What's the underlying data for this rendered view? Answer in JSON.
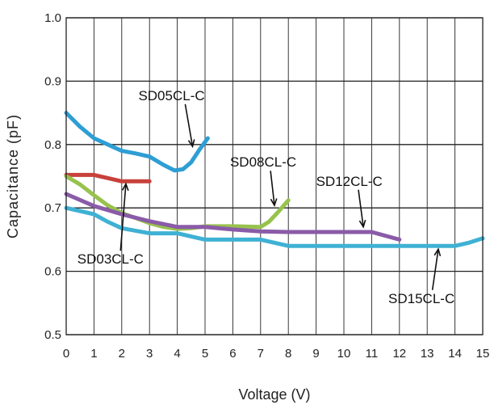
{
  "chart_data": {
    "type": "line",
    "xlabel": "Voltage (V)",
    "ylabel": "Capacitance (pF)",
    "xlim": [
      0,
      15
    ],
    "ylim": [
      0.5,
      1.0
    ],
    "x_ticks": [
      "0",
      "1",
      "2",
      "3",
      "4",
      "5",
      "6",
      "7",
      "8",
      "9",
      "10",
      "11",
      "12",
      "13",
      "14",
      "15"
    ],
    "y_ticks": [
      "0.5",
      "0.6",
      "0.7",
      "0.8",
      "0.9",
      "1.0"
    ],
    "grid": true,
    "series": [
      {
        "name": "SD03CL-C",
        "color": "#c8413b",
        "label_at": [
          0.4,
          0.612
        ],
        "arrow_to": [
          2.15,
          0.738
        ],
        "points": [
          [
            0,
            0.752
          ],
          [
            1,
            0.752
          ],
          [
            2,
            0.742
          ],
          [
            3,
            0.742
          ]
        ]
      },
      {
        "name": "SD05CL-C",
        "color": "#2e9ed4",
        "label_at": [
          2.6,
          0.87
        ],
        "arrow_to": [
          4.55,
          0.797
        ],
        "points": [
          [
            0,
            0.85
          ],
          [
            0.5,
            0.828
          ],
          [
            1,
            0.81
          ],
          [
            1.5,
            0.8
          ],
          [
            2,
            0.79
          ],
          [
            2.5,
            0.786
          ],
          [
            3,
            0.781
          ],
          [
            3.5,
            0.768
          ],
          [
            3.9,
            0.759
          ],
          [
            4.2,
            0.761
          ],
          [
            4.5,
            0.772
          ],
          [
            4.8,
            0.792
          ],
          [
            5.1,
            0.81
          ]
        ]
      },
      {
        "name": "SD08CL-C",
        "color": "#97c24d",
        "label_at": [
          5.9,
          0.765
        ],
        "arrow_to": [
          7.5,
          0.704
        ],
        "points": [
          [
            0,
            0.75
          ],
          [
            0.5,
            0.737
          ],
          [
            1,
            0.72
          ],
          [
            1.5,
            0.704
          ],
          [
            2,
            0.692
          ],
          [
            2.5,
            0.684
          ],
          [
            3,
            0.676
          ],
          [
            3.5,
            0.67
          ],
          [
            4,
            0.667
          ],
          [
            4.5,
            0.668
          ],
          [
            5,
            0.671
          ],
          [
            6,
            0.671
          ],
          [
            7,
            0.67
          ],
          [
            7.3,
            0.678
          ],
          [
            7.6,
            0.692
          ],
          [
            8,
            0.712
          ]
        ]
      },
      {
        "name": "SD12CL-C",
        "color": "#8a5ba8",
        "label_at": [
          9.0,
          0.735
        ],
        "arrow_to": [
          10.7,
          0.67
        ],
        "points": [
          [
            0,
            0.722
          ],
          [
            1,
            0.703
          ],
          [
            2,
            0.69
          ],
          [
            3,
            0.679
          ],
          [
            4,
            0.67
          ],
          [
            5,
            0.67
          ],
          [
            6,
            0.666
          ],
          [
            7,
            0.663
          ],
          [
            8,
            0.662
          ],
          [
            9,
            0.662
          ],
          [
            10,
            0.662
          ],
          [
            11,
            0.662
          ],
          [
            12,
            0.65
          ]
        ]
      },
      {
        "name": "SD15CL-C",
        "color": "#3fb1d4",
        "label_at": [
          11.6,
          0.55
        ],
        "arrow_to": [
          13.4,
          0.635
        ],
        "points": [
          [
            0,
            0.7
          ],
          [
            1,
            0.69
          ],
          [
            1.5,
            0.678
          ],
          [
            2,
            0.668
          ],
          [
            3,
            0.66
          ],
          [
            4,
            0.66
          ],
          [
            5,
            0.65
          ],
          [
            6,
            0.65
          ],
          [
            7,
            0.65
          ],
          [
            8,
            0.64
          ],
          [
            9,
            0.64
          ],
          [
            10,
            0.64
          ],
          [
            11,
            0.64
          ],
          [
            12,
            0.64
          ],
          [
            13,
            0.64
          ],
          [
            14,
            0.64
          ],
          [
            14.5,
            0.645
          ],
          [
            15,
            0.652
          ]
        ]
      }
    ]
  }
}
